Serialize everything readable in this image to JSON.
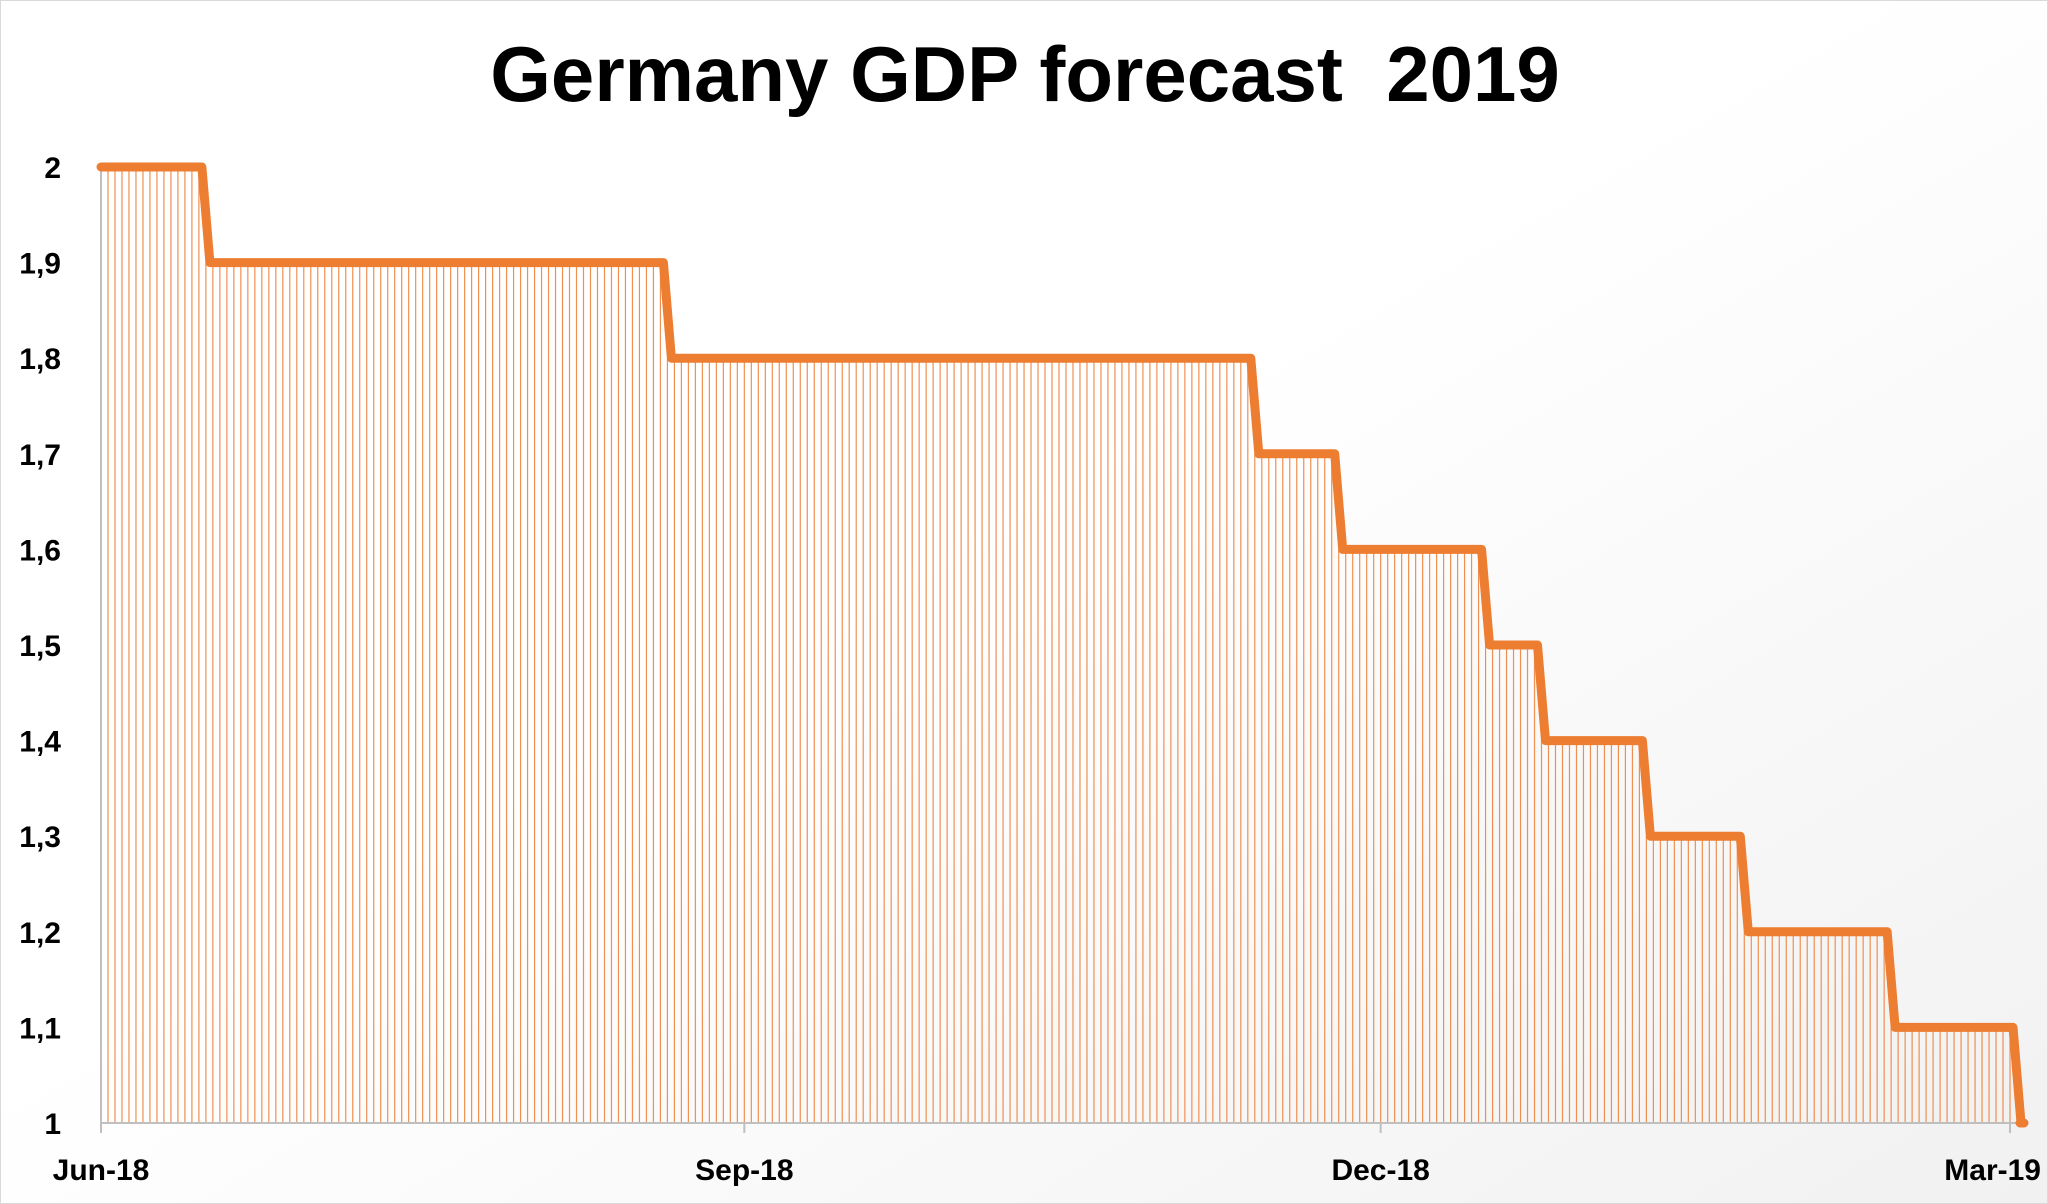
{
  "chart_data": {
    "type": "area",
    "title": "Germany GDP forecast  2019",
    "xlabel": "",
    "ylabel": "",
    "x_tick_labels": [
      "Jun-18",
      "Sep-18",
      "Dec-18",
      "Mar-19"
    ],
    "x_ticks": [
      "2018-06-01",
      "2018-09-01",
      "2018-12-01",
      "2019-03-01"
    ],
    "xlim": [
      "2018-06-01",
      "2019-03-03"
    ],
    "ylim": [
      1,
      2
    ],
    "y_ticks": [
      1,
      1.1,
      1.2,
      1.3,
      1.4,
      1.5,
      1.6,
      1.7,
      1.8,
      1.9,
      2
    ],
    "y_tick_labels": [
      "1",
      "1,1",
      "1,2",
      "1,3",
      "1,4",
      "1,5",
      "1,6",
      "1,7",
      "1,8",
      "1,9",
      "2"
    ],
    "grid": false,
    "legend": "none",
    "series": [
      {
        "color": "#ed7d31",
        "steps": [
          {
            "from": "2018-06-01",
            "to": "2018-06-16",
            "value": 2.0
          },
          {
            "from": "2018-06-16",
            "to": "2018-08-21",
            "value": 1.9
          },
          {
            "from": "2018-08-21",
            "to": "2018-11-13",
            "value": 1.8
          },
          {
            "from": "2018-11-13",
            "to": "2018-11-25",
            "value": 1.7
          },
          {
            "from": "2018-11-25",
            "to": "2018-12-16",
            "value": 1.6
          },
          {
            "from": "2018-12-16",
            "to": "2018-12-24",
            "value": 1.5
          },
          {
            "from": "2018-12-24",
            "to": "2019-01-08",
            "value": 1.4
          },
          {
            "from": "2019-01-08",
            "to": "2019-01-22",
            "value": 1.3
          },
          {
            "from": "2019-01-22",
            "to": "2019-02-12",
            "value": 1.2
          },
          {
            "from": "2019-02-12",
            "to": "2019-03-02",
            "value": 1.1
          },
          {
            "from": "2019-03-02",
            "to": "2019-03-03",
            "value": 1.0
          }
        ]
      }
    ]
  }
}
